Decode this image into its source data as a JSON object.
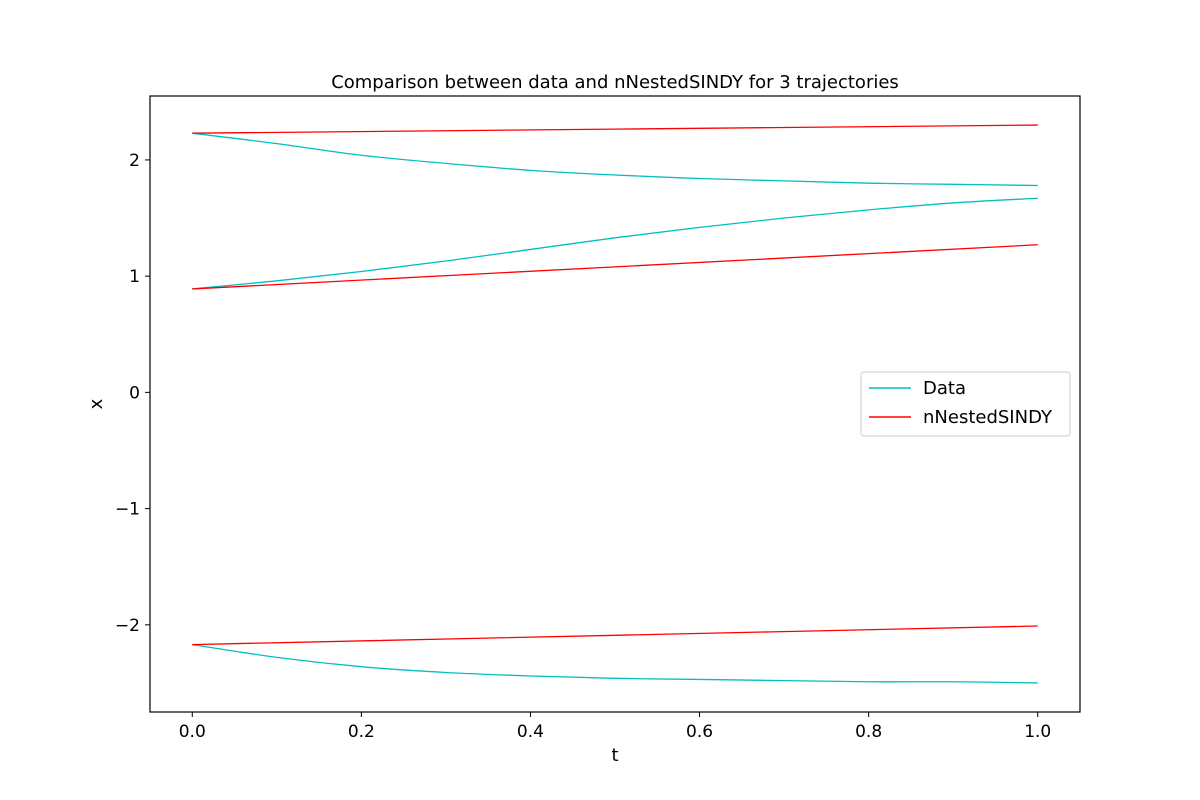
{
  "chart_data": {
    "type": "line",
    "title": "Comparison between data and nNestedSINDY for 3 trajectories",
    "xlabel": "t",
    "ylabel": "x",
    "xlim": [
      -0.05,
      1.05
    ],
    "ylim": [
      -2.75,
      2.55
    ],
    "xticks": [
      0.0,
      0.2,
      0.4,
      0.6,
      0.8,
      1.0
    ],
    "xtick_labels": [
      "0.0",
      "0.2",
      "0.4",
      "0.6",
      "0.8",
      "1.0"
    ],
    "yticks": [
      -2,
      -1,
      0,
      1,
      2
    ],
    "ytick_labels": [
      "−2",
      "−1",
      "0",
      "1",
      "2"
    ],
    "grid": false,
    "legend_position": "center-right",
    "series": [
      {
        "name": "Data",
        "color": "#00bfbf",
        "trajectories": [
          {
            "x": [
              0.0,
              0.1,
              0.2,
              0.3,
              0.4,
              0.5,
              0.6,
              0.7,
              0.8,
              0.9,
              1.0
            ],
            "y": [
              2.23,
              2.14,
              2.04,
              1.97,
              1.91,
              1.87,
              1.84,
              1.82,
              1.8,
              1.79,
              1.78
            ]
          },
          {
            "x": [
              0.0,
              0.1,
              0.2,
              0.3,
              0.4,
              0.5,
              0.6,
              0.7,
              0.8,
              0.9,
              1.0
            ],
            "y": [
              0.89,
              0.96,
              1.04,
              1.13,
              1.23,
              1.33,
              1.42,
              1.5,
              1.57,
              1.63,
              1.67
            ]
          },
          {
            "x": [
              0.0,
              0.1,
              0.2,
              0.3,
              0.4,
              0.5,
              0.6,
              0.7,
              0.8,
              0.9,
              1.0
            ],
            "y": [
              -2.17,
              -2.28,
              -2.36,
              -2.41,
              -2.44,
              -2.46,
              -2.47,
              -2.48,
              -2.49,
              -2.49,
              -2.5
            ]
          }
        ]
      },
      {
        "name": "nNestedSINDY",
        "color": "#ff0000",
        "trajectories": [
          {
            "x": [
              0.0,
              0.5,
              1.0
            ],
            "y": [
              2.23,
              2.265,
              2.3
            ]
          },
          {
            "x": [
              0.0,
              0.5,
              1.0
            ],
            "y": [
              0.89,
              1.08,
              1.27
            ]
          },
          {
            "x": [
              0.0,
              0.5,
              1.0
            ],
            "y": [
              -2.17,
              -2.09,
              -2.01
            ]
          }
        ]
      }
    ]
  }
}
